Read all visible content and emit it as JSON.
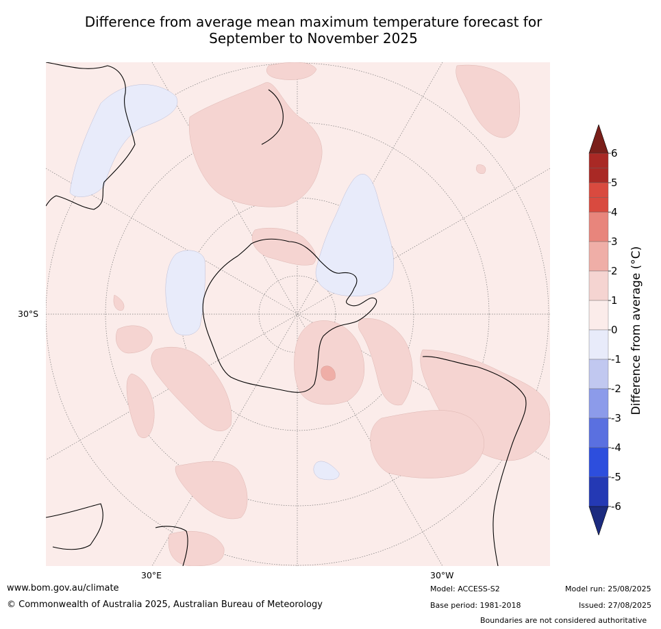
{
  "header": {
    "title_line1": "Difference from average mean maximum temperature forecast for",
    "title_line2": "September to November 2025"
  },
  "map": {
    "projection": "south-polar-stereographic",
    "lat_labels": [
      {
        "text": "30°S"
      }
    ],
    "lon_labels": [
      {
        "text": "30°E"
      },
      {
        "text": "30°W"
      }
    ],
    "land_color": "#ffffff",
    "background_anomaly_color": "#fbecea"
  },
  "colorbar": {
    "label": "Difference from average ($^\\circ$C)",
    "label_display": "Difference from average (°C)",
    "ticks": [
      "6",
      "5",
      "4",
      "3",
      "2",
      "1",
      "0",
      "-1",
      "-2",
      "-3",
      "-4",
      "-5",
      "-6"
    ],
    "bins": [
      {
        "range": "5.5 to 6",
        "color": "#a92925"
      },
      {
        "range": "5 to 5.5",
        "color": "#a92925"
      },
      {
        "range": "4.5 to 5",
        "color": "#d94a3f"
      },
      {
        "range": "4 to 4.5",
        "color": "#d94a3f"
      },
      {
        "range": "3 to 4",
        "color": "#e8857c"
      },
      {
        "range": "2 to 3",
        "color": "#efaea7"
      },
      {
        "range": "1 to 2",
        "color": "#f5d4d1"
      },
      {
        "range": "0 to 1",
        "color": "#fbecea"
      },
      {
        "range": "-1 to 0",
        "color": "#e8ebfa"
      },
      {
        "range": "-2 to -1",
        "color": "#c1c8f0"
      },
      {
        "range": "-3 to -2",
        "color": "#8c9bea"
      },
      {
        "range": "-4 to -3",
        "color": "#5a70e0"
      },
      {
        "range": "-5 to -4",
        "color": "#2d4edd"
      },
      {
        "range": "-6 to -5",
        "color": "#2439b4"
      }
    ],
    "over_color": "#7a1f1a",
    "under_color": "#1c2b7f"
  },
  "footer": {
    "url": "www.bom.gov.au/climate",
    "copyright": "© Commonwealth of Australia 2025, Australian Bureau of Meteorology",
    "model": "Model: ACCESS-S2",
    "base_period": "Base period: 1981-2018",
    "model_run": "Model run: 25/08/2025",
    "issued": "Issued: 27/08/2025",
    "disclaimer": "Boundaries are not considered authoritative"
  }
}
